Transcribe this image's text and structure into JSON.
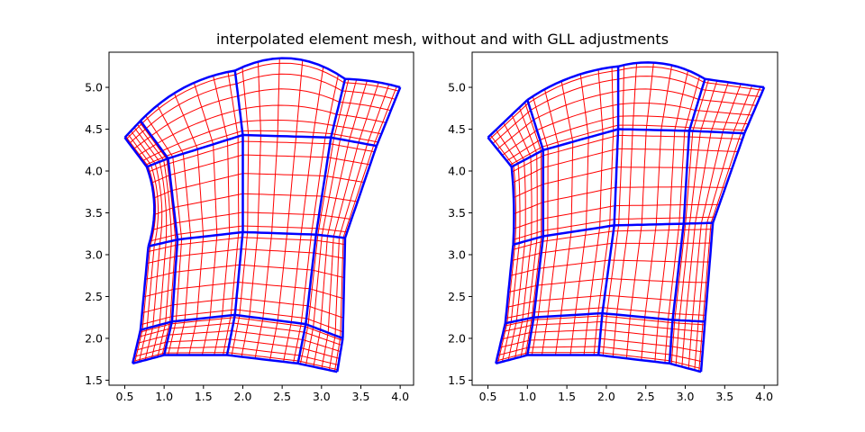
{
  "title": "interpolated element mesh, without and with GLL adjustments",
  "colors": {
    "element_edges": "#0000ff",
    "gll_lines": "#ff0000",
    "axes": "#000000",
    "background": "#ffffff"
  },
  "chart_data": [
    {
      "type": "line",
      "subplot": "left",
      "description_shown": "element mesh without GLL adjustments",
      "xlim": [
        0.3,
        4.17
      ],
      "ylim": [
        1.44,
        5.42
      ],
      "xticks": [
        0.5,
        1.0,
        1.5,
        2.0,
        2.5,
        3.0,
        3.5,
        4.0
      ],
      "yticks": [
        1.5,
        2.0,
        2.5,
        3.0,
        3.5,
        4.0,
        4.5,
        5.0
      ],
      "gll_lines_per_element_side": 7,
      "grid": false,
      "corner_grid": [
        [
          [
            0.6,
            1.7
          ],
          [
            1.0,
            1.8
          ],
          [
            1.8,
            1.8
          ],
          [
            2.7,
            1.7
          ],
          [
            3.2,
            1.6
          ]
        ],
        [
          [
            0.7,
            2.1
          ],
          [
            1.1,
            2.2
          ],
          [
            1.9,
            2.28
          ],
          [
            2.8,
            2.17
          ],
          [
            3.27,
            2.0
          ]
        ],
        [
          [
            0.8,
            3.1
          ],
          [
            1.17,
            3.18
          ],
          [
            2.0,
            3.27
          ],
          [
            2.93,
            3.24
          ],
          [
            3.3,
            3.2
          ]
        ],
        [
          [
            0.78,
            4.05
          ],
          [
            1.05,
            4.15
          ],
          [
            2.0,
            4.43
          ],
          [
            3.12,
            4.4
          ],
          [
            3.7,
            4.3
          ]
        ],
        [
          [
            0.5,
            4.4
          ],
          [
            0.7,
            4.6
          ],
          [
            1.9,
            5.2
          ],
          [
            3.3,
            5.1
          ],
          [
            4.0,
            5.0
          ]
        ]
      ],
      "curved_edges": [
        {
          "from": [
            0.7,
            4.6
          ],
          "to": [
            1.9,
            5.2
          ],
          "bulge": 0.08
        },
        {
          "from": [
            1.9,
            5.2
          ],
          "to": [
            3.3,
            5.1
          ],
          "bulge": 0.14
        },
        {
          "from": [
            3.3,
            5.1
          ],
          "to": [
            4.0,
            5.0
          ],
          "bulge": 0.03
        },
        {
          "from": [
            0.78,
            4.05
          ],
          "to": [
            0.8,
            3.1
          ],
          "bulge": 0.09
        }
      ]
    },
    {
      "type": "line",
      "subplot": "right",
      "description_shown": "element mesh with GLL adjustments",
      "xlim": [
        0.3,
        4.17
      ],
      "ylim": [
        1.44,
        5.42
      ],
      "xticks": [
        0.5,
        1.0,
        1.5,
        2.0,
        2.5,
        3.0,
        3.5,
        4.0
      ],
      "yticks": [
        1.5,
        2.0,
        2.5,
        3.0,
        3.5,
        4.0,
        4.5,
        5.0
      ],
      "gll_lines_per_element_side": 7,
      "grid": false,
      "corner_grid": [
        [
          [
            0.6,
            1.7
          ],
          [
            1.0,
            1.8
          ],
          [
            1.9,
            1.8
          ],
          [
            2.8,
            1.7
          ],
          [
            3.2,
            1.6
          ]
        ],
        [
          [
            0.72,
            2.18
          ],
          [
            1.08,
            2.25
          ],
          [
            1.95,
            2.3
          ],
          [
            2.84,
            2.22
          ],
          [
            3.25,
            2.2
          ]
        ],
        [
          [
            0.82,
            3.12
          ],
          [
            1.2,
            3.22
          ],
          [
            2.1,
            3.35
          ],
          [
            2.98,
            3.37
          ],
          [
            3.35,
            3.38
          ]
        ],
        [
          [
            0.8,
            4.05
          ],
          [
            1.2,
            4.25
          ],
          [
            2.15,
            4.5
          ],
          [
            3.05,
            4.48
          ],
          [
            3.75,
            4.45
          ]
        ],
        [
          [
            0.5,
            4.4
          ],
          [
            1.0,
            4.85
          ],
          [
            2.15,
            5.25
          ],
          [
            3.25,
            5.1
          ],
          [
            4.0,
            5.0
          ]
        ]
      ],
      "curved_edges": [
        {
          "from": [
            1.0,
            4.85
          ],
          "to": [
            2.15,
            5.25
          ],
          "bulge": 0.06
        },
        {
          "from": [
            2.15,
            5.25
          ],
          "to": [
            3.25,
            5.1
          ],
          "bulge": 0.1
        },
        {
          "from": [
            0.8,
            4.05
          ],
          "to": [
            0.82,
            3.12
          ],
          "bulge": 0.02
        }
      ]
    }
  ]
}
